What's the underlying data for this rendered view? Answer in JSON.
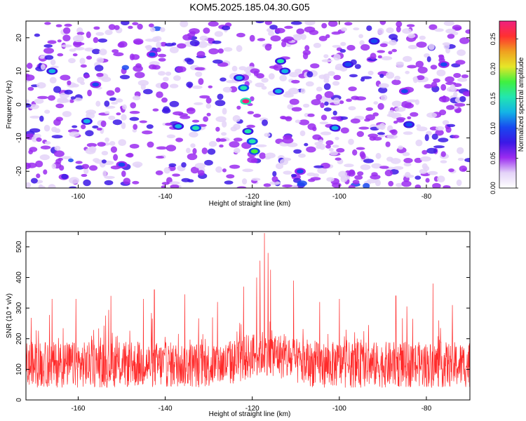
{
  "title": "KOM5.2025.185.04.30.G05",
  "chart_data": [
    {
      "type": "heatmap",
      "xlabel": "Height of straight line (km)",
      "ylabel": "Frequency (Hz)",
      "xlim": [
        -172,
        -70
      ],
      "ylim": [
        -25,
        25
      ],
      "x_ticks": [
        -160,
        -140,
        -120,
        -100,
        -80
      ],
      "x_tick_labels": [
        "-160",
        "-140",
        "-120",
        "-100",
        "-80"
      ],
      "y_ticks": [
        -20,
        -10,
        0,
        10,
        20
      ],
      "y_tick_labels": [
        "-20",
        "-10",
        "0",
        "10",
        "20"
      ],
      "colorbar": {
        "label": "Normalized spectral amplitude",
        "range": [
          0,
          0.28
        ],
        "ticks": [
          0,
          0.05,
          0.1,
          0.15,
          0.2,
          0.25
        ],
        "tick_labels": [
          "0.00",
          "0.05",
          "0.10",
          "0.15",
          "0.20",
          "0.25"
        ],
        "colors": [
          "#ffffff",
          "#e4d4f8",
          "#9b2cf0",
          "#3b18e6",
          "#1848f0",
          "#14b4e6",
          "#22e6b0",
          "#40f040",
          "#e6e628",
          "#f0a020",
          "#ff3030",
          "#f02080"
        ]
      },
      "background_level": 0.04,
      "features": [
        {
          "x": -121.5,
          "y": 1,
          "value": 0.27
        },
        {
          "x": -122,
          "y": 5,
          "value": 0.15
        },
        {
          "x": -123,
          "y": 8,
          "value": 0.12
        },
        {
          "x": -121,
          "y": -8,
          "value": 0.14
        },
        {
          "x": -120,
          "y": -11,
          "value": 0.16
        },
        {
          "x": -119.5,
          "y": -14,
          "value": 0.18
        },
        {
          "x": -113.5,
          "y": 13,
          "value": 0.14
        },
        {
          "x": -112.5,
          "y": 10,
          "value": 0.13
        },
        {
          "x": -114,
          "y": 4,
          "value": 0.12
        },
        {
          "x": -133,
          "y": -7,
          "value": 0.15
        },
        {
          "x": -137,
          "y": -6.5,
          "value": 0.12
        },
        {
          "x": -166,
          "y": 10,
          "value": 0.12
        },
        {
          "x": -158,
          "y": -5,
          "value": 0.12
        },
        {
          "x": -156,
          "y": 6,
          "value": 0.1
        },
        {
          "x": -101,
          "y": -7,
          "value": 0.12
        },
        {
          "x": -98,
          "y": 12,
          "value": 0.11
        },
        {
          "x": -92,
          "y": 19,
          "value": 0.11
        },
        {
          "x": -85,
          "y": 4,
          "value": 0.1
        },
        {
          "x": -84,
          "y": -6,
          "value": 0.11
        },
        {
          "x": -143,
          "y": 15,
          "value": 0.1
        },
        {
          "x": -150,
          "y": -18,
          "value": 0.1
        },
        {
          "x": -76,
          "y": 12,
          "value": 0.09
        },
        {
          "x": -109,
          "y": -20,
          "value": 0.1
        }
      ]
    },
    {
      "type": "line",
      "xlabel": "Height of straight line (km)",
      "ylabel": "SNR (10 * v/v)",
      "xlim": [
        -172,
        -70
      ],
      "ylim": [
        0,
        550
      ],
      "x_ticks": [
        -160,
        -140,
        -120,
        -100,
        -80
      ],
      "x_tick_labels": [
        "-160",
        "-140",
        "-120",
        "-100",
        "-80"
      ],
      "y_ticks": [
        0,
        100,
        200,
        300,
        400,
        500
      ],
      "y_tick_labels": [
        "0",
        "100",
        "200",
        "300",
        "400",
        "500"
      ],
      "series": [
        {
          "color": "#ff2a2a",
          "x_start": -172,
          "x_end": -70,
          "points": 1600,
          "baseline_mean": 115,
          "peaks": [
            {
              "x": -117.2,
              "y": 545
            },
            {
              "x": -116.4,
              "y": 480
            },
            {
              "x": -118.2,
              "y": 455
            },
            {
              "x": -115.8,
              "y": 425
            },
            {
              "x": -119.0,
              "y": 400
            },
            {
              "x": -110.5,
              "y": 390
            },
            {
              "x": -122.0,
              "y": 370
            },
            {
              "x": -78.5,
              "y": 380
            },
            {
              "x": -142.5,
              "y": 360
            },
            {
              "x": -135.5,
              "y": 345
            },
            {
              "x": -152.5,
              "y": 340
            },
            {
              "x": -166.0,
              "y": 330
            },
            {
              "x": -160.5,
              "y": 330
            },
            {
              "x": -87.0,
              "y": 340
            },
            {
              "x": -100.0,
              "y": 330
            },
            {
              "x": -74.0,
              "y": 310
            },
            {
              "x": -104.5,
              "y": 320
            },
            {
              "x": -128.0,
              "y": 320
            },
            {
              "x": -145.0,
              "y": 330
            }
          ]
        }
      ]
    }
  ]
}
